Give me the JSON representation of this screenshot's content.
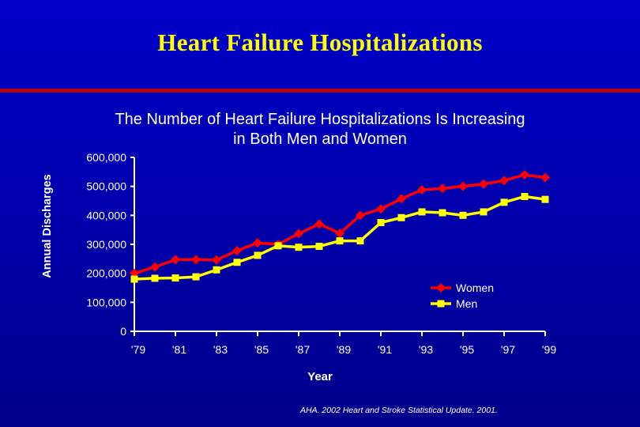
{
  "slide": {
    "title": "Heart Failure Hospitalizations",
    "citation": "AHA. 2002 Heart and Stroke Statistical Update. 2001."
  },
  "colors": {
    "background": "#0000c0",
    "title": "#ffff00",
    "rule": "#b40000",
    "women": "#ff0000",
    "men": "#ffff00",
    "axis": "#ffffff",
    "text": "#ffffff"
  },
  "chart_data": {
    "type": "line",
    "title": "The Number of Heart Failure Hospitalizations Is Increasing\nin Both Men and Women",
    "xlabel": "Year",
    "ylabel": "Annual Discharges",
    "x": [
      1979,
      1980,
      1981,
      1982,
      1983,
      1984,
      1985,
      1986,
      1987,
      1988,
      1989,
      1990,
      1991,
      1992,
      1993,
      1994,
      1995,
      1996,
      1997,
      1998,
      1999
    ],
    "x_tick_labels": [
      "'79",
      "'81",
      "'83",
      "'85",
      "'87",
      "'89",
      "'91",
      "'93",
      "'95",
      "'97",
      "'99"
    ],
    "y_tick_labels": [
      "0",
      "100,000",
      "200,000",
      "300,000",
      "400,000",
      "500,000",
      "600,000"
    ],
    "ylim": [
      0,
      600000
    ],
    "xlim": [
      1979,
      1999
    ],
    "grid": false,
    "legend_position": "right",
    "series": [
      {
        "name": "Women",
        "color": "#ff0000",
        "marker": "diamond",
        "values": [
          200000,
          222000,
          247000,
          247000,
          246000,
          278000,
          305000,
          300000,
          337000,
          370000,
          338000,
          400000,
          422000,
          457000,
          488000,
          493000,
          500000,
          508000,
          520000,
          540000,
          530000
        ]
      },
      {
        "name": "Men",
        "color": "#ffff00",
        "marker": "square",
        "values": [
          180000,
          183000,
          184000,
          188000,
          212000,
          238000,
          262000,
          295000,
          290000,
          293000,
          312000,
          312000,
          375000,
          392000,
          412000,
          409000,
          400000,
          412000,
          445000,
          465000,
          455000
        ]
      }
    ]
  }
}
